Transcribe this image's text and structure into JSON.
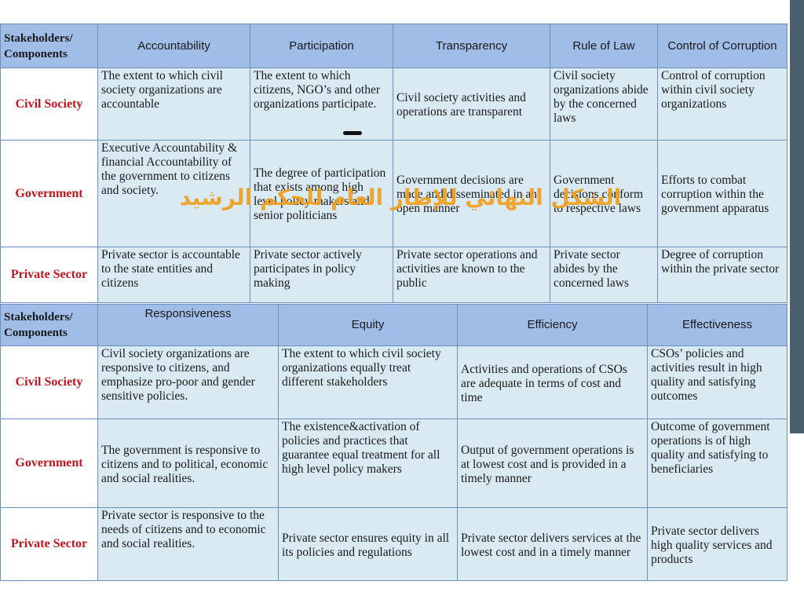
{
  "overlay_title": "الشكل النهائي للإطار العام للحكم الرشيد",
  "colors": {
    "header_bg": "#9fbde6",
    "cell_bg": "#d9eaf3",
    "row_label": "#c0141e",
    "overlay": "#f0a020",
    "side_bar": "#4a5f6e"
  },
  "table1": {
    "corner": [
      "Stakeholders/",
      "Components"
    ],
    "headers": [
      "Accountability",
      "Participation",
      "Transparency",
      "Rule of Law",
      "Control of Corruption"
    ],
    "rows": [
      {
        "label": "Civil Society",
        "cells": [
          "The extent to which civil society organizations are accountable",
          "The extent to which citizens, NGO’s and other organizations participate.",
          "Civil society activities and operations are transparent",
          "Civil society organizations abide by the concerned laws",
          "Control of corruption within civil society organizations"
        ]
      },
      {
        "label": "Government",
        "cells": [
          "Executive Accountability & financial Accountability of the government to citizens and society.",
          "The degree of participation that exists among high level policy makers and senior politicians",
          "Government decisions are made and disseminated in an open manner",
          "Government decisions conform to respective laws",
          "Efforts to combat corruption within the government apparatus"
        ]
      },
      {
        "label": "Private Sector",
        "cells": [
          "Private sector is accountable to the state entities and citizens",
          "Private sector actively participates in policy making",
          "Private sector operations and activities are known to the public",
          "Private sector abides by the concerned laws",
          "Degree of corruption within the private sector"
        ]
      }
    ]
  },
  "table2": {
    "corner": [
      "Stakeholders/",
      "Components"
    ],
    "headers": [
      "Responsiveness",
      "Equity",
      "Efficiency",
      "Effectiveness"
    ],
    "rows": [
      {
        "label": "Civil Society",
        "cells": [
          "Civil society organizations are responsive to citizens, and emphasize pro-poor and gender sensitive policies.",
          "The extent to which civil society organizations equally treat different stakeholders",
          "Activities and operations of CSOs are adequate in terms of cost and time",
          "CSOs’ policies and activities result in high quality and satisfying outcomes"
        ]
      },
      {
        "label": "Government",
        "cells": [
          "The government is responsive to citizens and to political, economic and social realities.",
          "The existence&activation of policies and practices that guarantee equal treatment for all high level policy makers",
          "Output of government operations is at lowest cost and is provided in a timely manner",
          "Outcome of government operations is of high quality and satisfying to beneficiaries"
        ]
      },
      {
        "label": "Private Sector",
        "cells": [
          "Private sector is responsive to the needs of citizens and to economic and social realities.",
          "Private sector ensures equity in all its policies and regulations",
          "Private sector delivers services at the lowest cost and in a timely manner",
          "Private sector delivers high quality services and products"
        ]
      }
    ]
  }
}
